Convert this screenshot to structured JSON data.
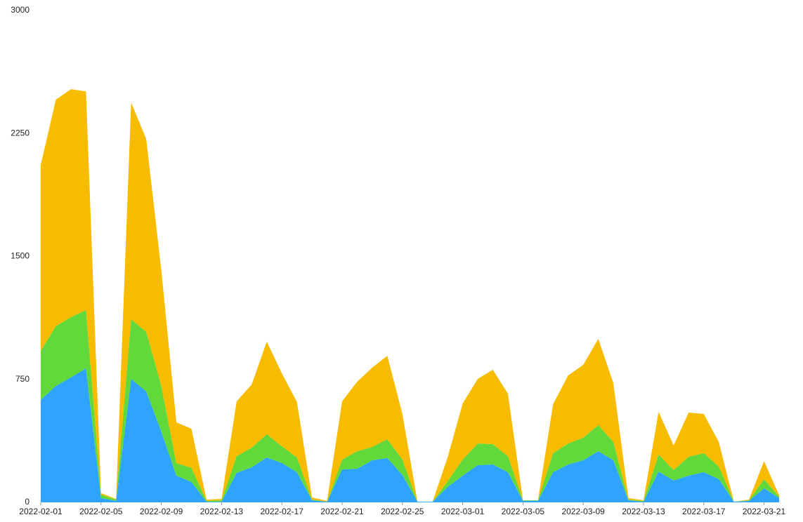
{
  "chart_data": {
    "type": "stacked-area",
    "x": [
      "2022-02-01",
      "2022-02-02",
      "2022-02-03",
      "2022-02-04",
      "2022-02-05",
      "2022-02-06",
      "2022-02-07",
      "2022-02-08",
      "2022-02-09",
      "2022-02-10",
      "2022-02-11",
      "2022-02-12",
      "2022-02-13",
      "2022-02-14",
      "2022-02-15",
      "2022-02-16",
      "2022-02-17",
      "2022-02-18",
      "2022-02-19",
      "2022-02-20",
      "2022-02-21",
      "2022-02-22",
      "2022-02-23",
      "2022-02-24",
      "2022-02-25",
      "2022-02-26",
      "2022-02-27",
      "2022-02-28",
      "2022-03-01",
      "2022-03-02",
      "2022-03-03",
      "2022-03-04",
      "2022-03-05",
      "2022-03-06",
      "2022-03-07",
      "2022-03-08",
      "2022-03-09",
      "2022-03-10",
      "2022-03-11",
      "2022-03-12",
      "2022-03-13",
      "2022-03-14",
      "2022-03-15",
      "2022-03-16",
      "2022-03-17",
      "2022-03-18",
      "2022-03-19",
      "2022-03-20",
      "2022-03-21",
      "2022-03-22"
    ],
    "xticks": [
      "2022-02-01",
      "2022-02-05",
      "2022-02-09",
      "2022-02-13",
      "2022-02-17",
      "2022-02-21",
      "2022-02-25",
      "2022-03-01",
      "2022-03-05",
      "2022-03-09",
      "2022-03-13",
      "2022-03-17",
      "2022-03-21"
    ],
    "series": [
      {
        "color": "#2ea3ff",
        "values": [
          625,
          710,
          762,
          817,
          26,
          9,
          753,
          676,
          432,
          163,
          124,
          4,
          4,
          180,
          214,
          274,
          240,
          184,
          13,
          4,
          201,
          205,
          257,
          270,
          167,
          4,
          4,
          94,
          163,
          227,
          231,
          184,
          9,
          9,
          184,
          231,
          257,
          312,
          257,
          13,
          4,
          188,
          133,
          163,
          184,
          141,
          4,
          9,
          86,
          26
        ]
      },
      {
        "color": "#62d93a",
        "values": [
          299,
          364,
          368,
          355,
          21,
          8,
          364,
          364,
          278,
          77,
          86,
          5,
          9,
          102,
          120,
          141,
          102,
          90,
          4,
          0,
          60,
          107,
          81,
          115,
          94,
          0,
          0,
          34,
          98,
          132,
          124,
          98,
          4,
          4,
          116,
          128,
          137,
          159,
          111,
          4,
          5,
          103,
          64,
          115,
          116,
          77,
          0,
          4,
          55,
          8
        ]
      },
      {
        "color": "#f7bb00",
        "values": [
          1134,
          1382,
          1390,
          1335,
          9,
          4,
          1322,
          1176,
          706,
          248,
          239,
          8,
          8,
          334,
          385,
          565,
          445,
          338,
          13,
          5,
          355,
          424,
          484,
          509,
          278,
          0,
          0,
          146,
          342,
          394,
          454,
          381,
          0,
          0,
          299,
          415,
          445,
          526,
          359,
          9,
          4,
          261,
          150,
          270,
          239,
          150,
          0,
          4,
          111,
          9
        ]
      }
    ],
    "ylim": [
      0,
      3000
    ],
    "yticks": [
      0,
      750,
      1500,
      2250,
      3000
    ]
  }
}
